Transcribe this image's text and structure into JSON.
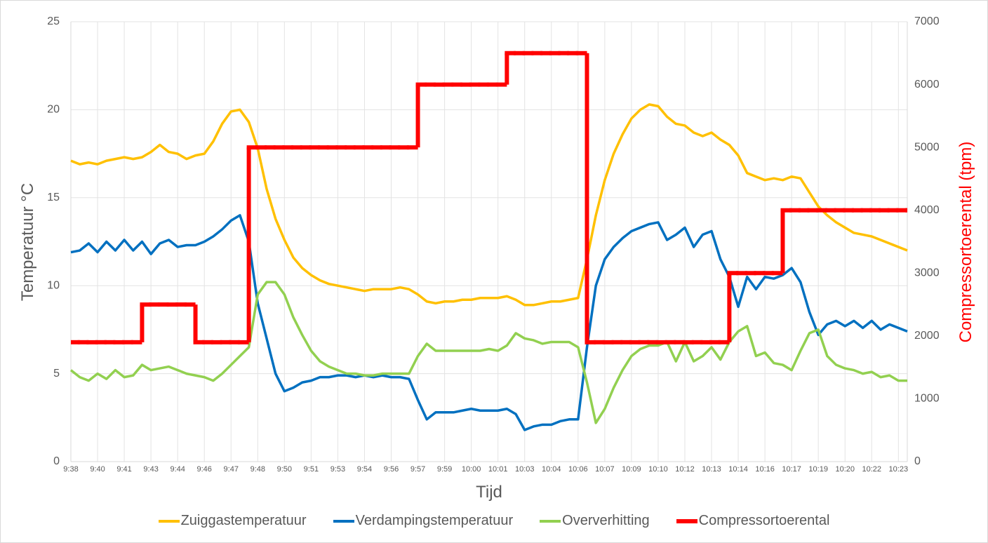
{
  "chart_data": {
    "type": "line",
    "x_label": "Tijd",
    "y_label": "Temperatuur °C",
    "y2_label": "Compressortoerental (tpm)",
    "ylim": [
      0,
      25
    ],
    "yticks": [
      0,
      5,
      10,
      15,
      20,
      25
    ],
    "y2lim": [
      0,
      7000
    ],
    "y2ticks": [
      0,
      1000,
      2000,
      3000,
      4000,
      5000,
      6000,
      7000
    ],
    "grid": true,
    "legend": "bottom",
    "categories": [
      "9:38",
      null,
      null,
      "9:40",
      null,
      null,
      "9:41",
      null,
      null,
      "9:43",
      null,
      null,
      "9:44",
      null,
      null,
      "9:46",
      null,
      null,
      "9:47",
      null,
      null,
      "9:48",
      null,
      null,
      "9:50",
      null,
      null,
      "9:51",
      null,
      null,
      "9:53",
      null,
      null,
      "9:54",
      null,
      null,
      "9:56",
      null,
      null,
      "9:57",
      null,
      null,
      "9:59",
      null,
      null,
      "10:00",
      null,
      null,
      "10:01",
      null,
      null,
      "10:03",
      null,
      null,
      "10:04",
      null,
      null,
      "10:06",
      null,
      null,
      "10:07",
      null,
      null,
      "10:09",
      null,
      null,
      "10:10",
      null,
      null,
      "10:12",
      null,
      null,
      "10:13",
      null,
      null,
      "10:14",
      null,
      null,
      "10:16",
      null,
      null,
      "10:17",
      null,
      null,
      "10:19",
      null,
      null,
      "10:20",
      null,
      null,
      "10:22",
      null,
      null,
      "10:23",
      null
    ],
    "series": [
      {
        "name": "Zuiggastemperatuur",
        "color": "#FFC000",
        "values": [
          17.1,
          16.9,
          17.0,
          16.9,
          17.1,
          17.2,
          17.3,
          17.2,
          17.3,
          17.6,
          18.0,
          17.6,
          17.5,
          17.2,
          17.4,
          17.5,
          18.2,
          19.2,
          19.9,
          20.0,
          19.3,
          17.8,
          15.5,
          13.8,
          12.6,
          11.6,
          11.0,
          10.6,
          10.3,
          10.1,
          10.0,
          9.9,
          9.8,
          9.7,
          9.8,
          9.8,
          9.8,
          9.9,
          9.8,
          9.5,
          9.1,
          9.0,
          9.1,
          9.1,
          9.2,
          9.2,
          9.3,
          9.3,
          9.3,
          9.4,
          9.2,
          8.9,
          8.9,
          9.0,
          9.1,
          9.1,
          9.2,
          9.3,
          11.5,
          14.0,
          16.0,
          17.5,
          18.6,
          19.5,
          20.0,
          20.3,
          20.2,
          19.6,
          19.2,
          19.1,
          18.7,
          18.5,
          18.7,
          18.3,
          18.0,
          17.4,
          16.4,
          16.2,
          16.0,
          16.1,
          16.0,
          16.2,
          16.1,
          15.3,
          14.5,
          14.0,
          13.6,
          13.3,
          13.0,
          12.9,
          12.8,
          12.6,
          12.4,
          12.2,
          12.0
        ]
      },
      {
        "name": "Verdampingstemperatuur",
        "color": "#0070C0",
        "values": [
          11.9,
          12.0,
          12.4,
          11.9,
          12.5,
          12.0,
          12.6,
          12.0,
          12.5,
          11.8,
          12.4,
          12.6,
          12.2,
          12.3,
          12.3,
          12.5,
          12.8,
          13.2,
          13.7,
          14.0,
          12.5,
          9.0,
          7.0,
          5.0,
          4.0,
          4.2,
          4.5,
          4.6,
          4.8,
          4.8,
          4.9,
          4.9,
          4.8,
          4.9,
          4.8,
          4.9,
          4.8,
          4.8,
          4.7,
          3.5,
          2.4,
          2.8,
          2.8,
          2.8,
          2.9,
          3.0,
          2.9,
          2.9,
          2.9,
          3.0,
          2.7,
          1.8,
          2.0,
          2.1,
          2.1,
          2.3,
          2.4,
          2.4,
          6.5,
          10.0,
          11.5,
          12.2,
          12.7,
          13.1,
          13.3,
          13.5,
          13.6,
          12.6,
          12.9,
          13.3,
          12.2,
          12.9,
          13.1,
          11.5,
          10.5,
          8.8,
          10.5,
          9.8,
          10.5,
          10.4,
          10.6,
          11.0,
          10.2,
          8.5,
          7.2,
          7.8,
          8.0,
          7.7,
          8.0,
          7.6,
          8.0,
          7.5,
          7.8,
          7.6,
          7.4
        ]
      },
      {
        "name": "Oververhitting",
        "color": "#92D050",
        "values": [
          5.2,
          4.8,
          4.6,
          5.0,
          4.7,
          5.2,
          4.8,
          4.9,
          5.5,
          5.2,
          5.3,
          5.4,
          5.2,
          5.0,
          4.9,
          4.8,
          4.6,
          5.0,
          5.5,
          6.0,
          6.5,
          9.5,
          10.2,
          10.2,
          9.5,
          8.2,
          7.2,
          6.3,
          5.7,
          5.4,
          5.2,
          5.0,
          5.0,
          4.9,
          4.9,
          5.0,
          5.0,
          5.0,
          5.0,
          6.0,
          6.7,
          6.3,
          6.3,
          6.3,
          6.3,
          6.3,
          6.3,
          6.4,
          6.3,
          6.6,
          7.3,
          7.0,
          6.9,
          6.7,
          6.8,
          6.8,
          6.8,
          6.5,
          4.5,
          2.2,
          3.0,
          4.2,
          5.2,
          6.0,
          6.4,
          6.6,
          6.6,
          6.8,
          5.7,
          6.8,
          5.7,
          6.0,
          6.5,
          5.8,
          6.8,
          7.4,
          7.7,
          6.0,
          6.2,
          5.6,
          5.5,
          5.2,
          6.3,
          7.3,
          7.5,
          6.0,
          5.5,
          5.3,
          5.2,
          5.0,
          5.1,
          4.8,
          4.9,
          4.6,
          4.6
        ]
      },
      {
        "name": "Compressortoerental",
        "color": "#FF0000",
        "axis": "y2",
        "step": "post",
        "values": [
          1900,
          1900,
          1900,
          1900,
          1900,
          1900,
          1900,
          1900,
          2500,
          2500,
          2500,
          2500,
          2500,
          2500,
          1900,
          1900,
          1900,
          1900,
          1900,
          1900,
          5000,
          5000,
          5000,
          5000,
          5000,
          5000,
          5000,
          5000,
          5000,
          5000,
          5000,
          5000,
          5000,
          5000,
          5000,
          5000,
          5000,
          5000,
          5000,
          6000,
          6000,
          6000,
          6000,
          6000,
          6000,
          6000,
          6000,
          6000,
          6000,
          6500,
          6500,
          6500,
          6500,
          6500,
          6500,
          6500,
          6500,
          6500,
          1900,
          1900,
          1900,
          1900,
          1900,
          1900,
          1900,
          1900,
          1900,
          1900,
          1900,
          1900,
          1900,
          1900,
          1900,
          1900,
          3000,
          3000,
          3000,
          3000,
          3000,
          3000,
          4000,
          4000,
          4000,
          4000,
          4000,
          4000,
          4000,
          4000,
          4000,
          4000,
          4000,
          4000,
          4000,
          4000,
          4000
        ]
      }
    ]
  }
}
